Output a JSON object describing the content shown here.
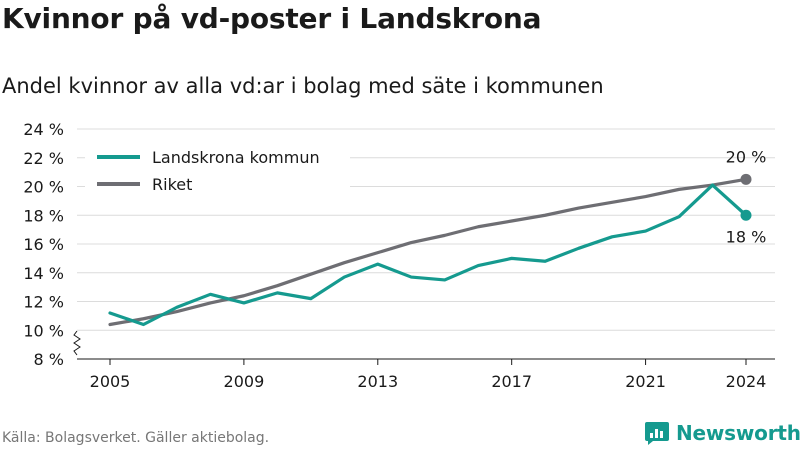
{
  "title": "Kvinnor på vd-poster i Landskrona",
  "subtitle": "Andel kvinnor av alla vd:ar i bolag med säte i kommunen",
  "source": "Källa: Bolagsverket. Gäller aktiebolag.",
  "brand": {
    "name": "Newsworthy",
    "icon": "newsworthy-logo-icon",
    "color": "#159a8f"
  },
  "chart_data": {
    "type": "line",
    "x": [
      2005,
      2006,
      2007,
      2008,
      2009,
      2010,
      2011,
      2012,
      2013,
      2014,
      2015,
      2016,
      2017,
      2018,
      2019,
      2020,
      2021,
      2022,
      2023,
      2024
    ],
    "series": [
      {
        "name": "Landskrona kommun",
        "color": "#159a8f",
        "values": [
          11.2,
          10.4,
          11.6,
          12.5,
          11.9,
          12.6,
          12.2,
          13.7,
          14.6,
          13.7,
          13.5,
          14.5,
          15.0,
          14.8,
          15.7,
          16.5,
          16.9,
          17.9,
          20.1,
          18.0
        ],
        "end_label": "18 %"
      },
      {
        "name": "Riket",
        "color": "#6e6e73",
        "values": [
          10.4,
          10.8,
          11.3,
          11.9,
          12.4,
          13.1,
          13.9,
          14.7,
          15.4,
          16.1,
          16.6,
          17.2,
          17.6,
          18.0,
          18.5,
          18.9,
          19.3,
          19.8,
          20.1,
          20.5
        ],
        "end_label": "20 %"
      }
    ],
    "x_ticks": [
      "2005",
      "2009",
      "2013",
      "2017",
      "2021",
      "2024"
    ],
    "y_ticks": [
      "8 %",
      "10 %",
      "12 %",
      "14 %",
      "16 %",
      "18 %",
      "20 %",
      "22 %",
      "24 %"
    ],
    "ylim": [
      8,
      24
    ],
    "xlim": [
      2005,
      2024
    ],
    "grid": "horizontal",
    "axis_break": true,
    "legend_position": "top-left",
    "xlabel": "",
    "ylabel": ""
  }
}
